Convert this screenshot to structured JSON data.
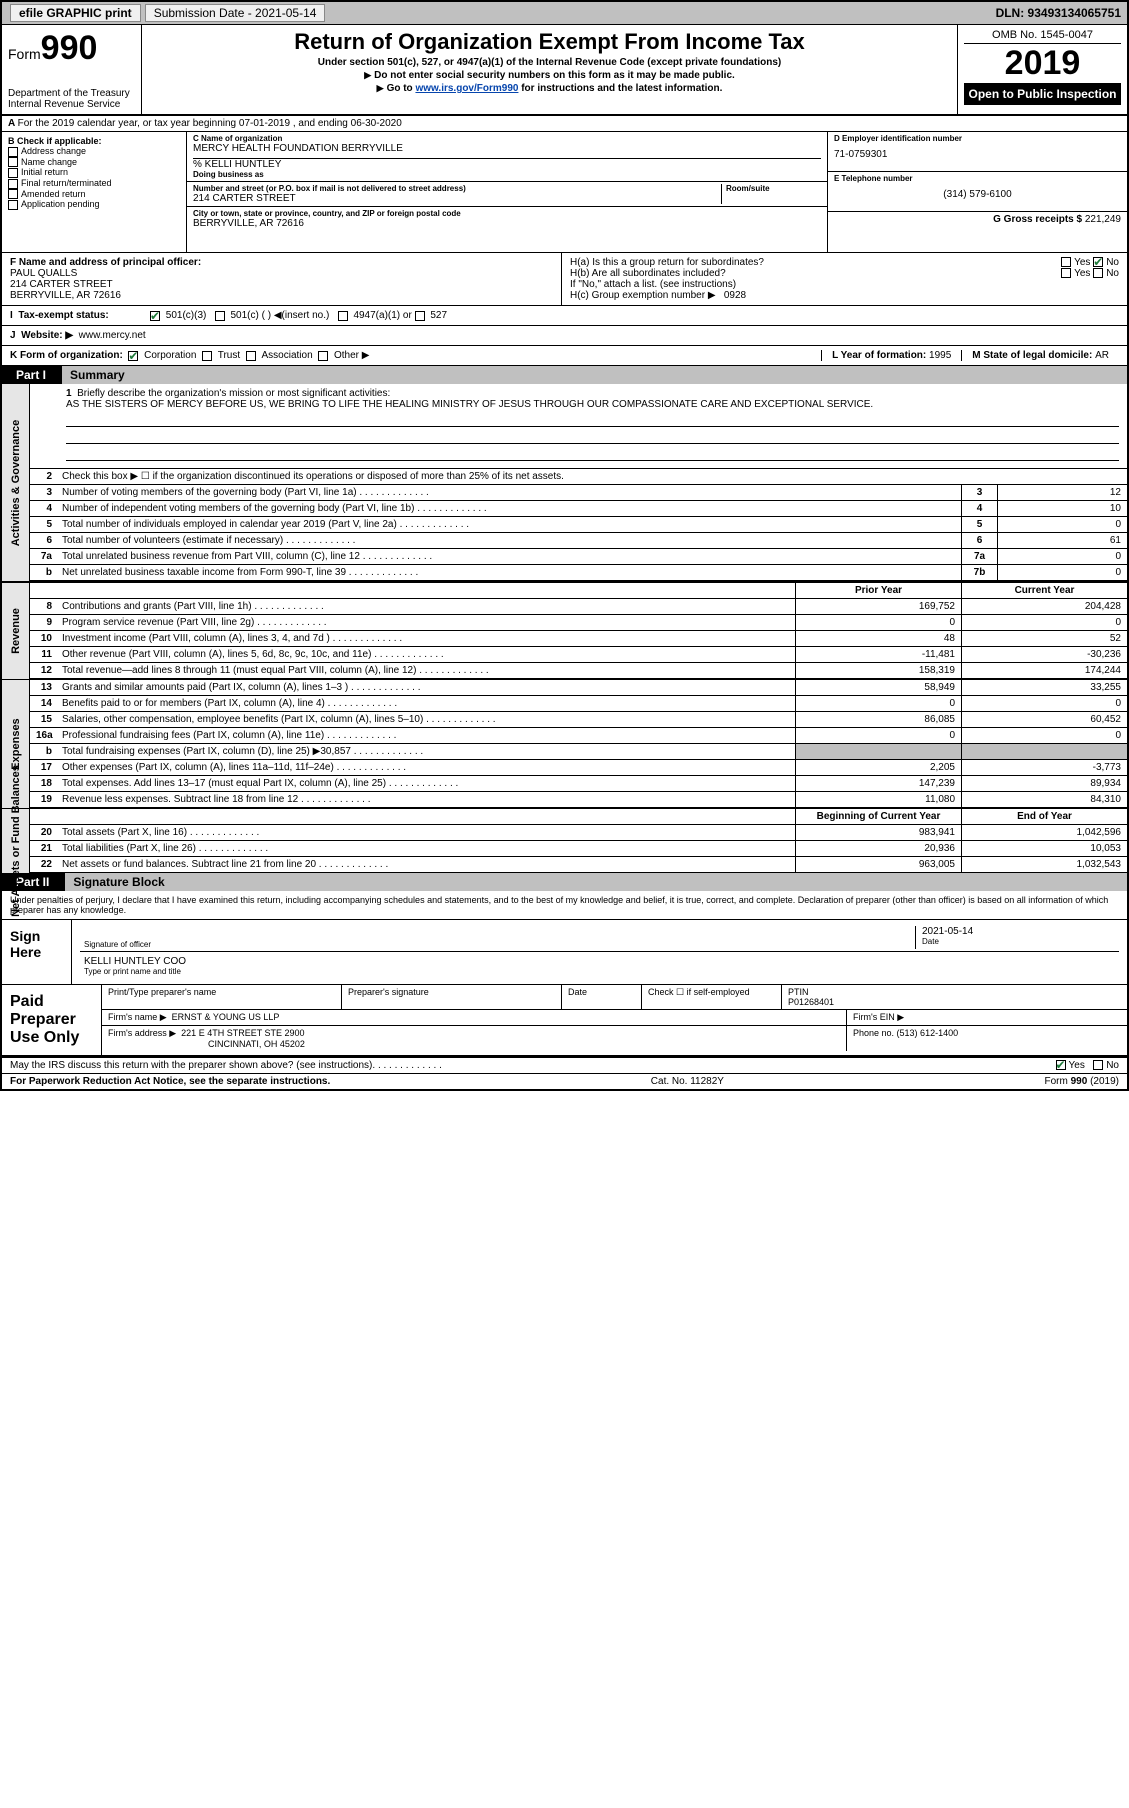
{
  "topbar": {
    "efile_label": "efile GRAPHIC print",
    "submission_label": "Submission Date - 2021-05-14",
    "dln_label": "DLN: 93493134065751"
  },
  "header": {
    "form_word": "Form",
    "form_number": "990",
    "dept": "Department of the Treasury\nInternal Revenue Service",
    "title": "Return of Organization Exempt From Income Tax",
    "subtitle1": "Under section 501(c), 527, or 4947(a)(1) of the Internal Revenue Code (except private foundations)",
    "subtitle2": "Do not enter social security numbers on this form as it may be made public.",
    "subtitle3_prefix": "Go to ",
    "subtitle3_link": "www.irs.gov/Form990",
    "subtitle3_suffix": " for instructions and the latest information.",
    "omb": "OMB No. 1545-0047",
    "year": "2019",
    "open_public": "Open to Public Inspection"
  },
  "tax_year_line": "For the 2019 calendar year, or tax year beginning 07-01-2019    , and ending 06-30-2020",
  "sectionB": {
    "b_label": "B Check if applicable:",
    "opt_address": "Address change",
    "opt_name": "Name change",
    "opt_initial": "Initial return",
    "opt_final": "Final return/terminated",
    "opt_amended": "Amended return",
    "opt_app": "Application pending"
  },
  "sectionC": {
    "c_label": "C Name of organization",
    "org_name": "MERCY HEALTH FOUNDATION BERRYVILLE",
    "care_of": "% KELLI HUNTLEY",
    "dba_label": "Doing business as",
    "street_label": "Number and street (or P.O. box if mail is not delivered to street address)",
    "room_label": "Room/suite",
    "street": "214 CARTER STREET",
    "city_label": "City or town, state or province, country, and ZIP or foreign postal code",
    "city": "BERRYVILLE, AR   72616"
  },
  "sectionD": {
    "d_label": "D Employer identification number",
    "ein": "71-0759301",
    "e_label": "E Telephone number",
    "phone": "(314) 579-6100",
    "g_label": "G Gross receipts $ ",
    "gross": "221,249"
  },
  "sectionF": {
    "f_label": "F Name and address of principal officer:",
    "officer_name": "PAUL QUALLS",
    "officer_addr": "214 CARTER STREET\nBERRYVILLE, AR   72616",
    "ha_label": "H(a)  Is this a group return for subordinates?",
    "hb_label": "H(b)  Are all subordinates included?",
    "hb_note": "If \"No,\" attach a list. (see instructions)",
    "hc_label": "H(c)  Group exemption number ▶",
    "hc_val": "0928",
    "yes": "Yes",
    "no": "No"
  },
  "sectionI": {
    "i_label": "Tax-exempt status:",
    "opt1": "501(c)(3)",
    "opt2": "501(c) (   ) ◀(insert no.)",
    "opt3": "4947(a)(1) or",
    "opt4": "527"
  },
  "sectionJ": {
    "j_label": "Website: ▶",
    "website": "www.mercy.net"
  },
  "sectionK": {
    "k_label": "K Form of organization:",
    "corp": "Corporation",
    "trust": "Trust",
    "assoc": "Association",
    "other": "Other ▶",
    "l_label": "L Year of formation: ",
    "l_val": "1995",
    "m_label": "M State of legal domicile: ",
    "m_val": "AR"
  },
  "part1": {
    "tab": "Part I",
    "title": "Summary",
    "activities_label": "Activities & Governance",
    "revenue_label": "Revenue",
    "expenses_label": "Expenses",
    "net_label": "Net Assets or Fund Balances",
    "line1_label": "1  Briefly describe the organization's mission or most significant activities:",
    "mission": "AS THE SISTERS OF MERCY BEFORE US, WE BRING TO LIFE THE HEALING MINISTRY OF JESUS THROUGH OUR COMPASSIONATE CARE AND EXCEPTIONAL SERVICE.",
    "line2": "Check this box ▶ ☐  if the organization discontinued its operations or disposed of more than 25% of its net assets.",
    "rows_ag": [
      {
        "n": "3",
        "d": "Number of voting members of the governing body (Part VI, line 1a)",
        "box": "3",
        "v": "12"
      },
      {
        "n": "4",
        "d": "Number of independent voting members of the governing body (Part VI, line 1b)",
        "box": "4",
        "v": "10"
      },
      {
        "n": "5",
        "d": "Total number of individuals employed in calendar year 2019 (Part V, line 2a)",
        "box": "5",
        "v": "0"
      },
      {
        "n": "6",
        "d": "Total number of volunteers (estimate if necessary)",
        "box": "6",
        "v": "61"
      },
      {
        "n": "7a",
        "d": "Total unrelated business revenue from Part VIII, column (C), line 12",
        "box": "7a",
        "v": "0"
      },
      {
        "n": "b",
        "d": "Net unrelated business taxable income from Form 990-T, line 39",
        "box": "7b",
        "v": "0"
      }
    ],
    "prior_year_label": "Prior Year",
    "current_year_label": "Current Year",
    "rows_rev": [
      {
        "n": "8",
        "d": "Contributions and grants (Part VIII, line 1h)",
        "py": "169,752",
        "cy": "204,428"
      },
      {
        "n": "9",
        "d": "Program service revenue (Part VIII, line 2g)",
        "py": "0",
        "cy": "0"
      },
      {
        "n": "10",
        "d": "Investment income (Part VIII, column (A), lines 3, 4, and 7d )",
        "py": "48",
        "cy": "52"
      },
      {
        "n": "11",
        "d": "Other revenue (Part VIII, column (A), lines 5, 6d, 8c, 9c, 10c, and 11e)",
        "py": "-11,481",
        "cy": "-30,236"
      },
      {
        "n": "12",
        "d": "Total revenue—add lines 8 through 11 (must equal Part VIII, column (A), line 12)",
        "py": "158,319",
        "cy": "174,244"
      }
    ],
    "rows_exp": [
      {
        "n": "13",
        "d": "Grants and similar amounts paid (Part IX, column (A), lines 1–3 )",
        "py": "58,949",
        "cy": "33,255"
      },
      {
        "n": "14",
        "d": "Benefits paid to or for members (Part IX, column (A), line 4)",
        "py": "0",
        "cy": "0"
      },
      {
        "n": "15",
        "d": "Salaries, other compensation, employee benefits (Part IX, column (A), lines 5–10)",
        "py": "86,085",
        "cy": "60,452"
      },
      {
        "n": "16a",
        "d": "Professional fundraising fees (Part IX, column (A), line 11e)",
        "py": "0",
        "cy": "0"
      },
      {
        "n": "b",
        "d": "Total fundraising expenses (Part IX, column (D), line 25) ▶30,857",
        "py": "",
        "cy": "",
        "gray": true
      },
      {
        "n": "17",
        "d": "Other expenses (Part IX, column (A), lines 11a–11d, 11f–24e)",
        "py": "2,205",
        "cy": "-3,773"
      },
      {
        "n": "18",
        "d": "Total expenses. Add lines 13–17 (must equal Part IX, column (A), line 25)",
        "py": "147,239",
        "cy": "89,934"
      },
      {
        "n": "19",
        "d": "Revenue less expenses. Subtract line 18 from line 12",
        "py": "11,080",
        "cy": "84,310"
      }
    ],
    "boy_label": "Beginning of Current Year",
    "eoy_label": "End of Year",
    "rows_net": [
      {
        "n": "20",
        "d": "Total assets (Part X, line 16)",
        "py": "983,941",
        "cy": "1,042,596"
      },
      {
        "n": "21",
        "d": "Total liabilities (Part X, line 26)",
        "py": "20,936",
        "cy": "10,053"
      },
      {
        "n": "22",
        "d": "Net assets or fund balances. Subtract line 21 from line 20",
        "py": "963,005",
        "cy": "1,032,543"
      }
    ]
  },
  "part2": {
    "tab": "Part II",
    "title": "Signature Block",
    "penalty": "Under penalties of perjury, I declare that I have examined this return, including accompanying schedules and statements, and to the best of my knowledge and belief, it is true, correct, and complete. Declaration of preparer (other than officer) is based on all information of which preparer has any knowledge.",
    "sign_here": "Sign Here",
    "sig_officer_lbl": "Signature of officer",
    "date_lbl": "Date",
    "sig_date": "2021-05-14",
    "name_title": "KELLI HUNTLEY COO",
    "name_title_lbl": "Type or print name and title",
    "paid_lbl": "Paid Preparer Use Only",
    "print_name_lbl": "Print/Type preparer's name",
    "prep_sig_lbl": "Preparer's signature",
    "date2_lbl": "Date",
    "check_self": "Check ☐ if self-employed",
    "ptin_lbl": "PTIN",
    "ptin": "P01268401",
    "firm_name_lbl": "Firm's name    ▶",
    "firm_name": "ERNST & YOUNG US LLP",
    "firm_ein_lbl": "Firm's EIN ▶",
    "firm_addr_lbl": "Firm's address ▶",
    "firm_addr1": "221 E 4TH STREET STE 2900",
    "firm_addr2": "CINCINNATI, OH   45202",
    "phone_lbl": "Phone no. ",
    "phone": "(513) 612-1400",
    "discuss": "May the IRS discuss this return with the preparer shown above? (see instructions)",
    "yes": "Yes",
    "no": "No"
  },
  "footer": {
    "pra": "For Paperwork Reduction Act Notice, see the separate instructions.",
    "cat": "Cat. No. 11282Y",
    "form": "Form 990 (2019)"
  },
  "colors": {
    "link": "#0645ad",
    "check_green": "#1e7a3a"
  }
}
